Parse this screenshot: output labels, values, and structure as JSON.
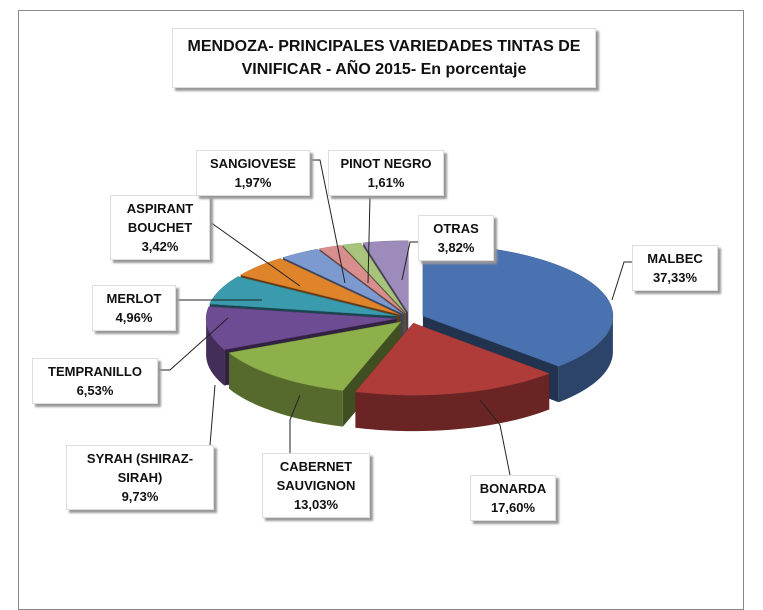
{
  "chart_data": {
    "type": "pie",
    "title": "MENDOZA- PRINCIPALES VARIEDADES TINTAS DE VINIFICAR - AÑO 2015- En porcentaje",
    "categories": [
      "MALBEC",
      "BONARDA",
      "CABERNET SAUVIGNON",
      "SYRAH (SHIRAZ-SIRAH)",
      "TEMPRANILLO",
      "MERLOT",
      "ASPIRANT BOUCHET",
      "SANGIOVESE",
      "PINOT NEGRO",
      "OTRAS"
    ],
    "values": [
      37.33,
      17.6,
      13.03,
      9.73,
      6.53,
      4.96,
      3.42,
      1.97,
      1.61,
      3.82
    ],
    "value_labels": [
      "37,33%",
      "17,60%",
      "13,03%",
      "9,73%",
      "6,53%",
      "4,96%",
      "3,42%",
      "1,97%",
      "1,61%",
      "3,82%"
    ],
    "colors": [
      "#4a72b0",
      "#b03c3a",
      "#8db04a",
      "#6e4c93",
      "#3a9aae",
      "#e0842c",
      "#7d9ad0",
      "#d88e8c",
      "#a8c47c",
      "#9d8bbb"
    ]
  }
}
